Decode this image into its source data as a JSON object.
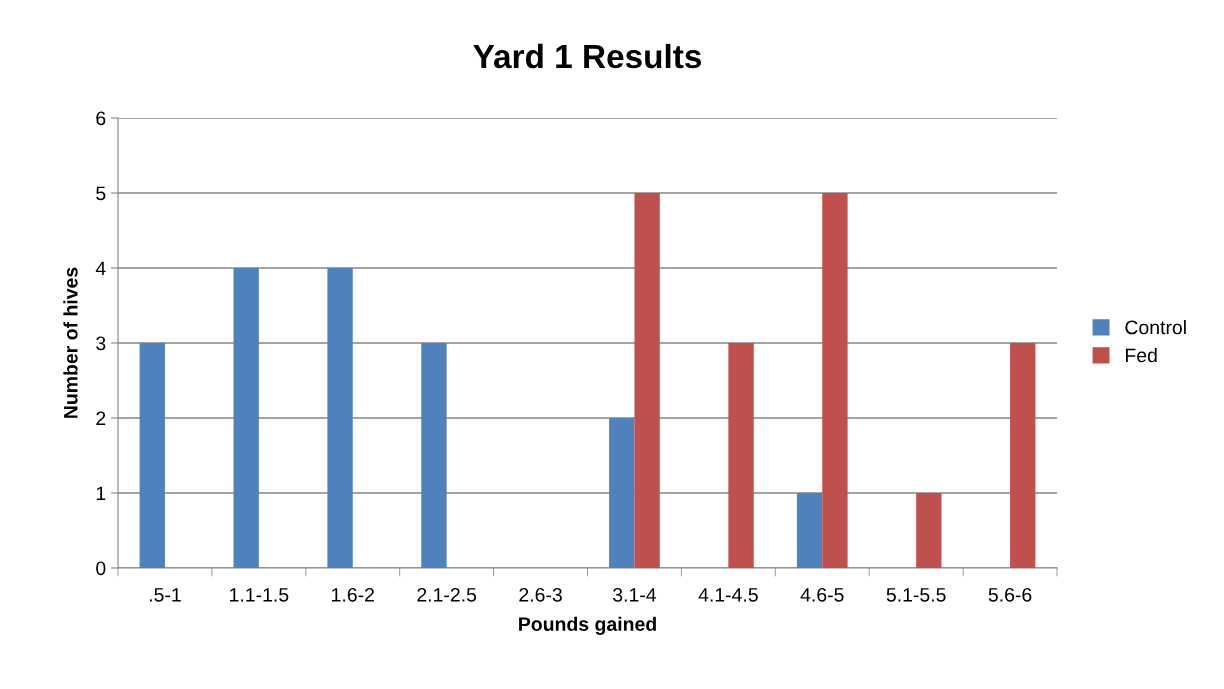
{
  "chart_data": {
    "type": "bar",
    "title": "Yard 1 Results",
    "xlabel": "Pounds gained",
    "ylabel": "Number of hives",
    "categories": [
      ".5-1",
      "1.1-1.5",
      "1.6-2",
      "2.1-2.5",
      "2.6-3",
      "3.1-4",
      "4.1-4.5",
      "4.6-5",
      "5.1-5.5",
      "5.6-6"
    ],
    "series": [
      {
        "name": "Control",
        "color": "#4f81bd",
        "values": [
          3,
          4,
          4,
          3,
          0,
          2,
          0,
          1,
          0,
          0
        ]
      },
      {
        "name": "Fed",
        "color": "#c0504d",
        "values": [
          0,
          0,
          0,
          0,
          0,
          5,
          3,
          5,
          1,
          3
        ]
      }
    ],
    "ylim": [
      0,
      6
    ],
    "yticks": [
      0,
      1,
      2,
      3,
      4,
      5,
      6
    ],
    "grid": "y",
    "legend": "right"
  }
}
